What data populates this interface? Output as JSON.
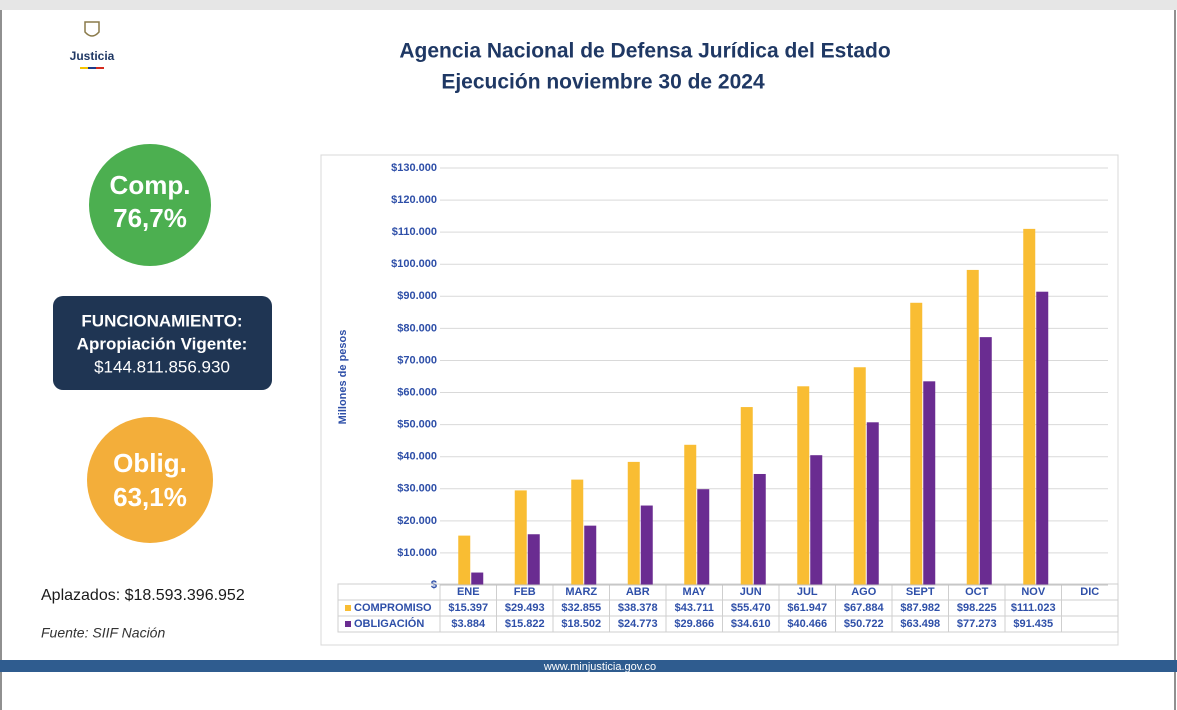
{
  "header": {
    "logo": "Justicia",
    "title": "Agencia Nacional de Defensa Jurídica del Estado",
    "subtitle": "Ejecución noviembre 30 de 2024"
  },
  "sidebar": {
    "comp_label": "Comp.",
    "comp_value": "76,7%",
    "box_line1": "FUNCIONAMIENTO:",
    "box_line2": "Apropiación Vigente:",
    "box_line3": "$144.811.856.930",
    "oblig_label": "Oblig.",
    "oblig_value": "63,1%",
    "deferred": "Aplazados: $18.593.396.952",
    "source": "Fuente: SIIF Nación"
  },
  "footer": "www.minjusticia.gov.co",
  "chart_data": {
    "type": "bar",
    "y_label": "Millones de pesos",
    "categories": [
      "ENE",
      "FEB",
      "MARZ",
      "ABR",
      "MAY",
      "JUN",
      "JUL",
      "AGO",
      "SEPT",
      "OCT",
      "NOV",
      "DIC"
    ],
    "series": [
      {
        "name": "COMPROMISO",
        "color": "#f9bd33",
        "values": [
          15397,
          29493,
          32855,
          38378,
          43711,
          55470,
          61947,
          67884,
          87982,
          98225,
          111023,
          null
        ],
        "value_labels": [
          "$15.397",
          "$29.493",
          "$32.855",
          "$38.378",
          "$43.711",
          "$55.470",
          "$61.947",
          "$67.884",
          "$87.982",
          "$98.225",
          "$111.023",
          null
        ]
      },
      {
        "name": "OBLIGACIÓN",
        "color": "#6a2c91",
        "values": [
          3884,
          15822,
          18502,
          24773,
          29866,
          34610,
          40466,
          50722,
          63498,
          77273,
          91435,
          null
        ],
        "value_labels": [
          "$3.884",
          "$15.822",
          "$18.502",
          "$24.773",
          "$29.866",
          "$34.610",
          "$40.466",
          "$50.722",
          "$63.498",
          "$77.273",
          "$91.435",
          null
        ]
      }
    ],
    "ylim": [
      0,
      130000
    ],
    "yticks": [
      {
        "value": 0,
        "label": "$"
      },
      {
        "value": 10000,
        "label": "$10.000"
      },
      {
        "value": 20000,
        "label": "$20.000"
      },
      {
        "value": 30000,
        "label": "$30.000"
      },
      {
        "value": 40000,
        "label": "$40.000"
      },
      {
        "value": 50000,
        "label": "$50.000"
      },
      {
        "value": 60000,
        "label": "$60.000"
      },
      {
        "value": 70000,
        "label": "$70.000"
      },
      {
        "value": 80000,
        "label": "$80.000"
      },
      {
        "value": 90000,
        "label": "$90.000"
      },
      {
        "value": 100000,
        "label": "$100.000"
      },
      {
        "value": 110000,
        "label": "$110.000"
      },
      {
        "value": 120000,
        "label": "$120.000"
      },
      {
        "value": 130000,
        "label": "$130.000"
      }
    ],
    "grid": true
  }
}
